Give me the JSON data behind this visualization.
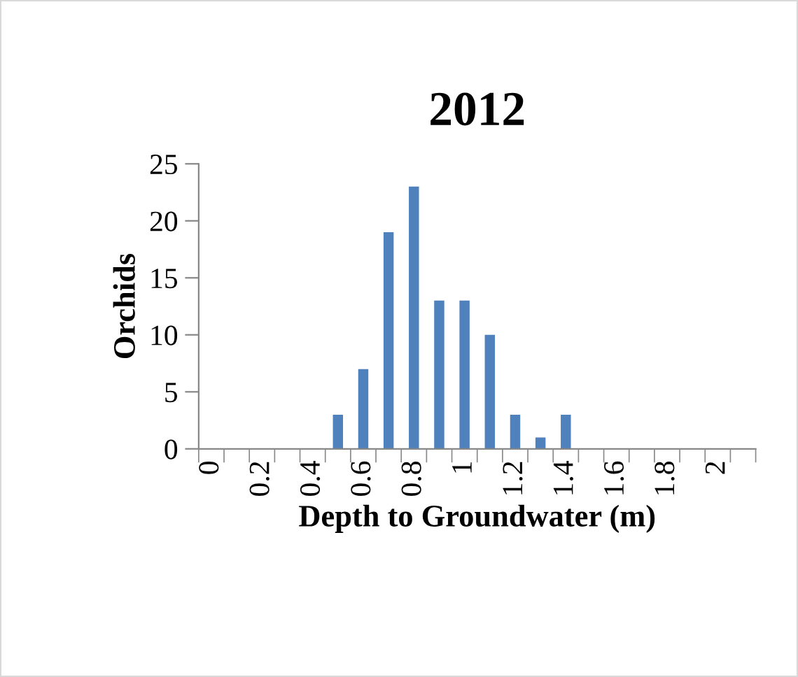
{
  "chart_data": {
    "type": "bar",
    "title": "2012",
    "xlabel": "Depth to Groundwater (m)",
    "ylabel": "Orchids",
    "categories": [
      "0",
      null,
      "0.2",
      null,
      "0.4",
      null,
      "0.6",
      null,
      "0.8",
      null,
      "1",
      null,
      "1.2",
      null,
      "1.4",
      null,
      "1.6",
      null,
      "1.8",
      null,
      "2",
      null
    ],
    "values": [
      0,
      0,
      0,
      0,
      0,
      3,
      7,
      19,
      23,
      13,
      13,
      10,
      3,
      1,
      3,
      0,
      0,
      0,
      0,
      0,
      0,
      0
    ],
    "color": "#4f81bd",
    "ylim": [
      0,
      25
    ],
    "yticks": [
      0,
      5,
      10,
      15,
      20,
      25
    ],
    "grid": false
  }
}
